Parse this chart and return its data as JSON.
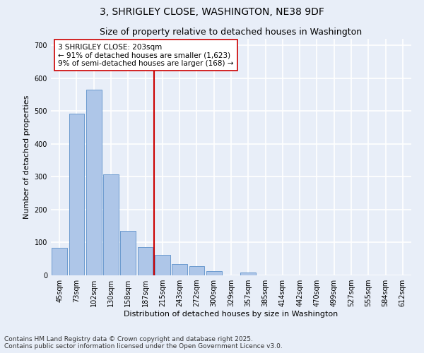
{
  "title_line1": "3, SHRIGLEY CLOSE, WASHINGTON, NE38 9DF",
  "title_line2": "Size of property relative to detached houses in Washington",
  "xlabel": "Distribution of detached houses by size in Washington",
  "ylabel": "Number of detached properties",
  "categories": [
    "45sqm",
    "73sqm",
    "102sqm",
    "130sqm",
    "158sqm",
    "187sqm",
    "215sqm",
    "243sqm",
    "272sqm",
    "300sqm",
    "329sqm",
    "357sqm",
    "385sqm",
    "414sqm",
    "442sqm",
    "470sqm",
    "499sqm",
    "527sqm",
    "555sqm",
    "584sqm",
    "612sqm"
  ],
  "values": [
    83,
    493,
    565,
    308,
    135,
    85,
    63,
    35,
    28,
    13,
    0,
    8,
    0,
    0,
    0,
    0,
    0,
    0,
    0,
    0,
    0
  ],
  "bar_color": "#aec6e8",
  "bar_edge_color": "#5b8fc9",
  "vline_x_index": 5.5,
  "vline_color": "#cc0000",
  "annotation_text": "3 SHRIGLEY CLOSE: 203sqm\n← 91% of detached houses are smaller (1,623)\n9% of semi-detached houses are larger (168) →",
  "annotation_box_color": "#ffffff",
  "annotation_box_edge": "#cc0000",
  "ylim": [
    0,
    720
  ],
  "yticks": [
    0,
    100,
    200,
    300,
    400,
    500,
    600,
    700
  ],
  "background_color": "#e8eef8",
  "grid_color": "#ffffff",
  "footer_line1": "Contains HM Land Registry data © Crown copyright and database right 2025.",
  "footer_line2": "Contains public sector information licensed under the Open Government Licence v3.0.",
  "title_fontsize": 10,
  "subtitle_fontsize": 9,
  "axis_label_fontsize": 8,
  "tick_fontsize": 7,
  "annotation_fontsize": 7.5,
  "footer_fontsize": 6.5
}
